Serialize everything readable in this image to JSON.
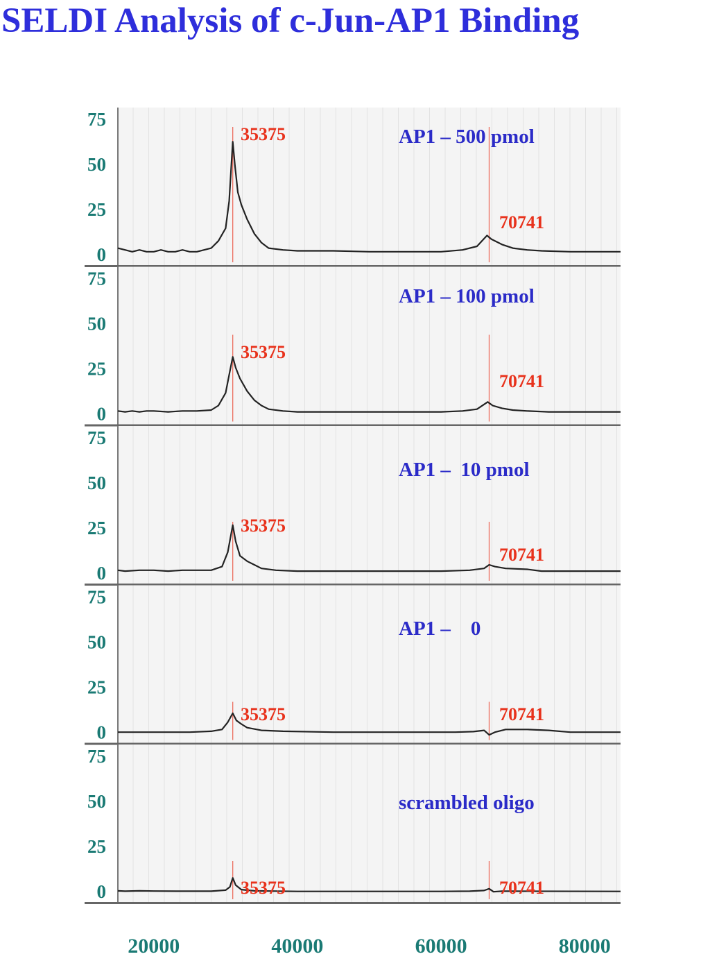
{
  "title": "SELDI Analysis of c-Jun-AP1 Binding",
  "colors": {
    "title": "#2e2edb",
    "axis_ticks": "#1a7a74",
    "peak_labels": "#e8321c",
    "panel_labels": "#2b2bc8",
    "trace": "#222222",
    "grid": "#e2e2e2",
    "panel_bg": "#f4f4f4"
  },
  "chart_data": {
    "type": "line",
    "xlim": [
      15000,
      85000
    ],
    "x_ticks": [
      "20000",
      "40000",
      "60000",
      "80000"
    ],
    "x_tick_values": [
      20000,
      40000,
      60000,
      80000
    ],
    "ylim": [
      0,
      75
    ],
    "y_ticks": [
      "0",
      "25",
      "50",
      "75"
    ],
    "y_tick_values": [
      0,
      25,
      50,
      75
    ],
    "grid": true,
    "peak_marker_labels": [
      "35375",
      "70741"
    ],
    "peak_marker_x": [
      31000,
      66700
    ],
    "panels": [
      {
        "label": "AP1 – 500 pmol",
        "points": [
          [
            15000,
            4
          ],
          [
            16000,
            3
          ],
          [
            17000,
            2
          ],
          [
            18000,
            3
          ],
          [
            19000,
            2
          ],
          [
            20000,
            2
          ],
          [
            21000,
            3
          ],
          [
            22000,
            2
          ],
          [
            23000,
            2
          ],
          [
            24000,
            3
          ],
          [
            25000,
            2
          ],
          [
            26000,
            2
          ],
          [
            27000,
            3
          ],
          [
            28000,
            4
          ],
          [
            29000,
            8
          ],
          [
            30000,
            15
          ],
          [
            30500,
            30
          ],
          [
            31000,
            63
          ],
          [
            31300,
            50
          ],
          [
            31700,
            35
          ],
          [
            32200,
            28
          ],
          [
            33000,
            20
          ],
          [
            34000,
            12
          ],
          [
            35000,
            7
          ],
          [
            36000,
            4
          ],
          [
            38000,
            3
          ],
          [
            40000,
            2.5
          ],
          [
            45000,
            2.5
          ],
          [
            50000,
            2
          ],
          [
            55000,
            2
          ],
          [
            60000,
            2
          ],
          [
            63000,
            3
          ],
          [
            65000,
            5
          ],
          [
            66400,
            11
          ],
          [
            67000,
            9
          ],
          [
            68500,
            6
          ],
          [
            70000,
            4
          ],
          [
            72000,
            3
          ],
          [
            74000,
            2.5
          ],
          [
            78000,
            2
          ],
          [
            85000,
            2
          ]
        ]
      },
      {
        "label": "AP1 – 100 pmol",
        "points": [
          [
            15000,
            2
          ],
          [
            16000,
            1.5
          ],
          [
            17000,
            2
          ],
          [
            18000,
            1.5
          ],
          [
            19000,
            2
          ],
          [
            20000,
            2
          ],
          [
            22000,
            1.5
          ],
          [
            24000,
            2
          ],
          [
            26000,
            2
          ],
          [
            28000,
            2.5
          ],
          [
            29000,
            5
          ],
          [
            30000,
            12
          ],
          [
            30500,
            22
          ],
          [
            31000,
            32
          ],
          [
            31400,
            26
          ],
          [
            32000,
            20
          ],
          [
            33000,
            13
          ],
          [
            34000,
            8
          ],
          [
            35000,
            5
          ],
          [
            36000,
            3
          ],
          [
            38000,
            2
          ],
          [
            40000,
            1.5
          ],
          [
            50000,
            1.5
          ],
          [
            60000,
            1.5
          ],
          [
            63000,
            2
          ],
          [
            65000,
            3
          ],
          [
            66500,
            7
          ],
          [
            67200,
            5
          ],
          [
            68500,
            3.5
          ],
          [
            70000,
            2.5
          ],
          [
            72000,
            2
          ],
          [
            75000,
            1.5
          ],
          [
            85000,
            1.5
          ]
        ]
      },
      {
        "label": "AP1 –  10 pmol",
        "points": [
          [
            15000,
            2
          ],
          [
            16000,
            1.5
          ],
          [
            18000,
            2
          ],
          [
            20000,
            2
          ],
          [
            22000,
            1.5
          ],
          [
            24000,
            2
          ],
          [
            26000,
            2
          ],
          [
            28000,
            2
          ],
          [
            29500,
            4
          ],
          [
            30300,
            12
          ],
          [
            31000,
            27
          ],
          [
            31400,
            18
          ],
          [
            32000,
            10
          ],
          [
            33000,
            7
          ],
          [
            34000,
            5
          ],
          [
            35000,
            3
          ],
          [
            37000,
            2
          ],
          [
            40000,
            1.5
          ],
          [
            50000,
            1.5
          ],
          [
            60000,
            1.5
          ],
          [
            64000,
            2
          ],
          [
            66000,
            3
          ],
          [
            66700,
            5
          ],
          [
            67500,
            4
          ],
          [
            69000,
            3
          ],
          [
            72000,
            2.5
          ],
          [
            74000,
            1.5
          ],
          [
            78000,
            1.5
          ],
          [
            85000,
            1.5
          ]
        ]
      },
      {
        "label": "AP1 –    0",
        "points": [
          [
            15000,
            0.5
          ],
          [
            20000,
            0.5
          ],
          [
            25000,
            0.5
          ],
          [
            28000,
            1
          ],
          [
            29500,
            2
          ],
          [
            30300,
            6
          ],
          [
            31000,
            11
          ],
          [
            31500,
            7
          ],
          [
            32200,
            5
          ],
          [
            33000,
            3
          ],
          [
            35000,
            1.5
          ],
          [
            38000,
            1
          ],
          [
            45000,
            0.5
          ],
          [
            55000,
            0.5
          ],
          [
            62000,
            0.5
          ],
          [
            64500,
            0.8
          ],
          [
            66000,
            1.5
          ],
          [
            66700,
            -1
          ],
          [
            67500,
            0.5
          ],
          [
            69000,
            2
          ],
          [
            72000,
            2
          ],
          [
            75000,
            1.5
          ],
          [
            78000,
            0.5
          ],
          [
            85000,
            0.5
          ]
        ]
      },
      {
        "label": "scrambled oligo",
        "points": [
          [
            15000,
            0.8
          ],
          [
            16000,
            0.6
          ],
          [
            18000,
            0.8
          ],
          [
            20000,
            0.7
          ],
          [
            24000,
            0.6
          ],
          [
            28000,
            0.6
          ],
          [
            30000,
            1.2
          ],
          [
            30600,
            3
          ],
          [
            31000,
            8
          ],
          [
            31400,
            4
          ],
          [
            32200,
            1.5
          ],
          [
            34000,
            0.8
          ],
          [
            40000,
            0.5
          ],
          [
            50000,
            0.5
          ],
          [
            60000,
            0.5
          ],
          [
            64000,
            0.6
          ],
          [
            66000,
            1
          ],
          [
            66700,
            2
          ],
          [
            67300,
            0.3
          ],
          [
            68500,
            0.6
          ],
          [
            70000,
            0.6
          ],
          [
            85000,
            0.5
          ]
        ]
      }
    ]
  }
}
